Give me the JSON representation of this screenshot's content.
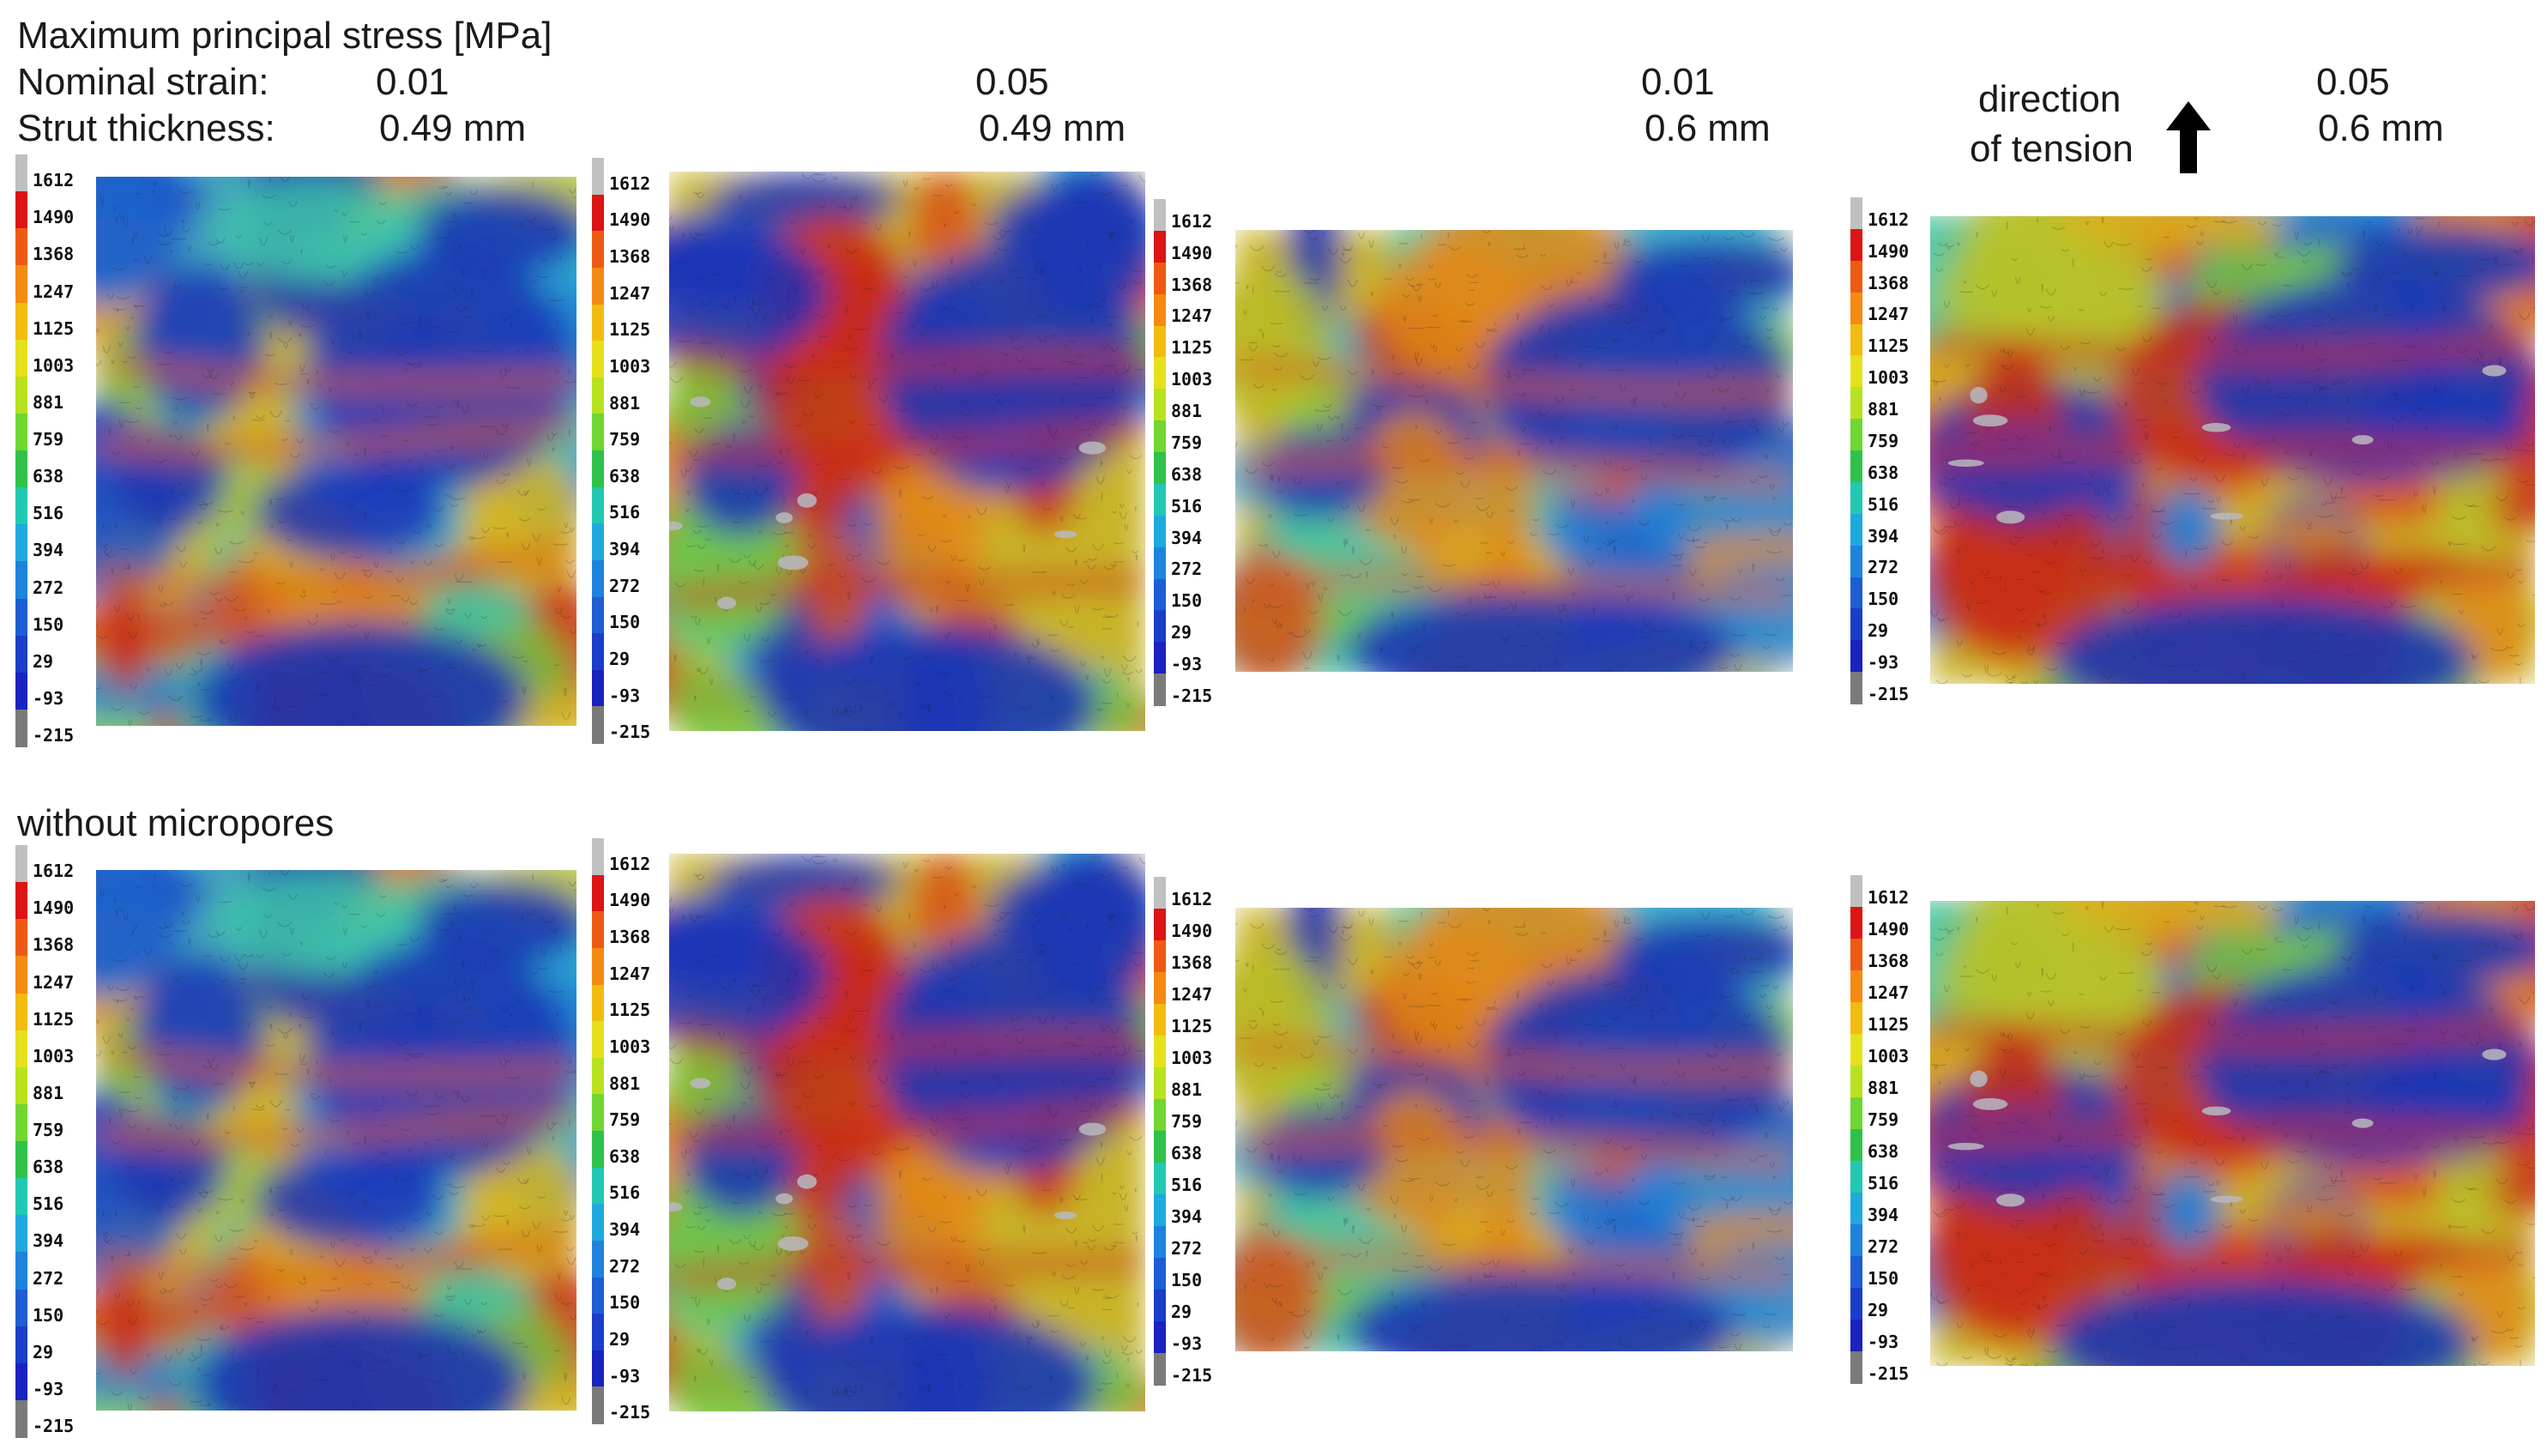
{
  "header": {
    "title": "Maximum principal stress [MPa]",
    "strain_label": "Nominal strain:",
    "thickness_label": "Strut thickness:",
    "columns": [
      {
        "strain": "0.01",
        "thickness": "0.49 mm"
      },
      {
        "strain": "0.05",
        "thickness": "0.49 mm"
      },
      {
        "strain": "0.01",
        "thickness": "0.6 mm"
      },
      {
        "strain": "0.05",
        "thickness": "0.6 mm"
      }
    ],
    "tension_line1": "direction",
    "tension_line2": "of tension",
    "arrow_icon": "up-arrow-icon"
  },
  "row2_title": "without micropores",
  "colorbar": {
    "labels": [
      "1612",
      "1490",
      "1368",
      "1247",
      "1125",
      "1003",
      "881",
      "759",
      "638",
      "516",
      "394",
      "272",
      "150",
      "29",
      "-93",
      "-215"
    ],
    "colors": [
      "#c0c0c0",
      "#dd1414",
      "#ee5a14",
      "#f58a12",
      "#f2bb10",
      "#e6e01a",
      "#b9e21e",
      "#6fd632",
      "#2fc24a",
      "#22c9b2",
      "#1fa9df",
      "#1e83dd",
      "#1d5ed5",
      "#1a3ec9",
      "#1a22c0",
      "#7a7a7a"
    ]
  }
}
